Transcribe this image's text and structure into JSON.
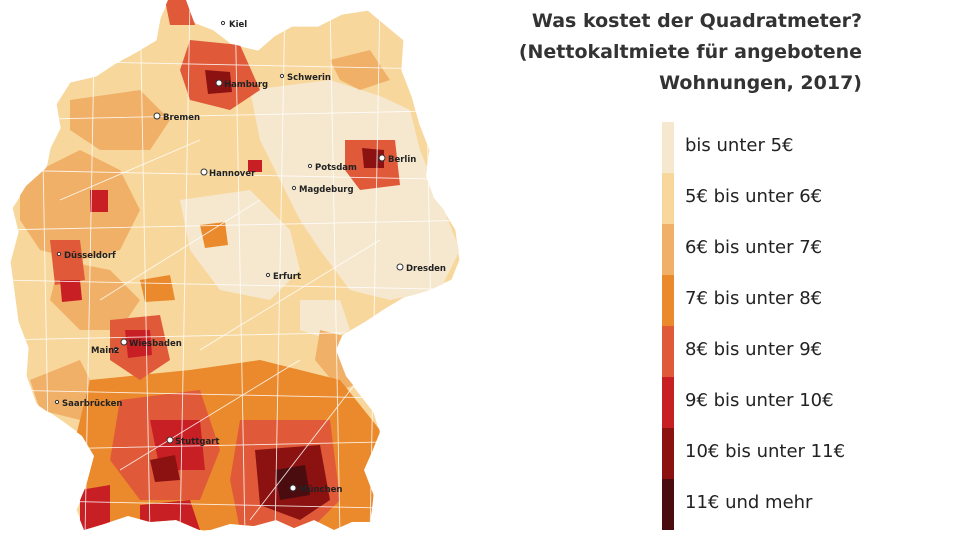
{
  "title_lines": [
    "Was kostet der Quadratmeter?",
    "(Nettokaltmiete für angebotene",
    "Wohnungen, 2017)"
  ],
  "legend": [
    {
      "label": "bis unter 5€",
      "color": "#f6e8cf"
    },
    {
      "label": "5€ bis unter 6€",
      "color": "#f8d79c"
    },
    {
      "label": "6€ bis unter 7€",
      "color": "#f0b068"
    },
    {
      "label": "7€ bis unter 8€",
      "color": "#ea8a2c"
    },
    {
      "label": "8€ bis unter 9€",
      "color": "#e05a3a"
    },
    {
      "label": "9€ bis unter 10€",
      "color": "#c81f24"
    },
    {
      "label": "10€ bis unter 11€",
      "color": "#8c1212"
    },
    {
      "label": "11€ und mehr",
      "color": "#4a0c0e"
    }
  ],
  "cities": [
    {
      "name": "Kiel",
      "marker": "dot"
    },
    {
      "name": "Hamburg",
      "marker": "ring"
    },
    {
      "name": "Schwerin",
      "marker": "dot"
    },
    {
      "name": "Bremen",
      "marker": "ring"
    },
    {
      "name": "Berlin",
      "marker": "ring"
    },
    {
      "name": "Potsdam",
      "marker": "dot"
    },
    {
      "name": "Hannover",
      "marker": "ring"
    },
    {
      "name": "Magdeburg",
      "marker": "dot"
    },
    {
      "name": "Düsseldorf",
      "marker": "dot"
    },
    {
      "name": "Dresden",
      "marker": "ring"
    },
    {
      "name": "Erfurt",
      "marker": "dot"
    },
    {
      "name": "Mainz",
      "marker": "dot"
    },
    {
      "name": "Wiesbaden",
      "marker": "ring"
    },
    {
      "name": "Saarbrücken",
      "marker": "dot"
    },
    {
      "name": "Stuttgart",
      "marker": "ring"
    },
    {
      "name": "München",
      "marker": "ring"
    }
  ]
}
